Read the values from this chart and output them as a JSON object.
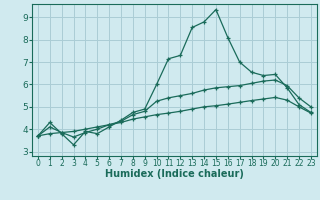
{
  "xlabel": "Humidex (Indice chaleur)",
  "bg_color": "#d0eaef",
  "grid_color": "#aacdd5",
  "line_color": "#1a6b5a",
  "xlim": [
    -0.5,
    23.5
  ],
  "ylim": [
    2.8,
    9.6
  ],
  "xticks": [
    0,
    1,
    2,
    3,
    4,
    5,
    6,
    7,
    8,
    9,
    10,
    11,
    12,
    13,
    14,
    15,
    16,
    17,
    18,
    19,
    20,
    21,
    22,
    23
  ],
  "yticks": [
    3,
    4,
    5,
    6,
    7,
    8,
    9
  ],
  "series": [
    [
      3.7,
      4.3,
      3.8,
      3.3,
      3.9,
      3.8,
      4.1,
      4.4,
      4.75,
      4.9,
      6.0,
      7.15,
      7.3,
      8.55,
      8.8,
      9.35,
      8.1,
      7.0,
      6.55,
      6.4,
      6.45,
      5.85,
      5.1,
      4.75
    ],
    [
      3.7,
      4.1,
      3.85,
      3.65,
      3.85,
      4.0,
      4.2,
      4.35,
      4.65,
      4.8,
      5.25,
      5.4,
      5.5,
      5.6,
      5.75,
      5.85,
      5.9,
      5.95,
      6.05,
      6.15,
      6.2,
      5.95,
      5.4,
      5.0
    ],
    [
      3.7,
      3.8,
      3.85,
      3.9,
      4.0,
      4.1,
      4.2,
      4.3,
      4.45,
      4.55,
      4.65,
      4.72,
      4.8,
      4.9,
      5.0,
      5.05,
      5.12,
      5.2,
      5.28,
      5.35,
      5.42,
      5.3,
      5.0,
      4.72
    ]
  ]
}
